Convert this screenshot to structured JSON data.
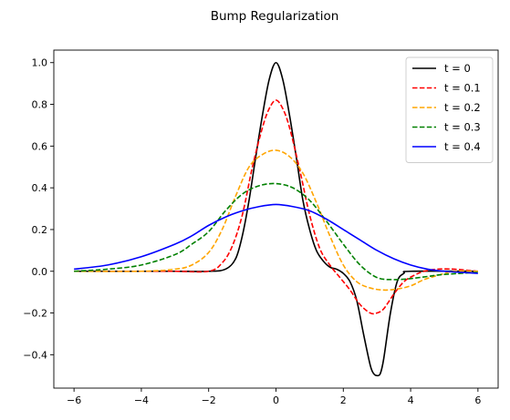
{
  "chart_data": {
    "type": "line",
    "title": "Bump Regularization",
    "xlabel": "",
    "ylabel": "",
    "xlim": [
      -6.6,
      6.6
    ],
    "ylim": [
      -0.56,
      1.06
    ],
    "xticks": [
      -6,
      -4,
      -2,
      0,
      2,
      4,
      6
    ],
    "yticks": [
      -0.4,
      -0.2,
      0.0,
      0.2,
      0.4,
      0.6,
      0.8,
      1.0
    ],
    "xtick_labels": [
      "−6",
      "−4",
      "−2",
      "0",
      "2",
      "4",
      "6"
    ],
    "ytick_labels": [
      "−0.4",
      "−0.2",
      "0.0",
      "0.2",
      "0.4",
      "0.6",
      "0.8",
      "1.0"
    ],
    "grid": false,
    "legend_position": "top-right",
    "series": [
      {
        "name": "t = 0",
        "color": "#000000",
        "dash": "solid",
        "x": [
          -6,
          -4,
          -3,
          -2,
          -1.5,
          -1.2,
          -1,
          -0.8,
          -0.6,
          -0.4,
          -0.2,
          0,
          0.2,
          0.4,
          0.6,
          0.8,
          1,
          1.2,
          1.4,
          1.6,
          1.8,
          2,
          2.2,
          2.4,
          2.6,
          2.8,
          2.9,
          3,
          3.1,
          3.2,
          3.4,
          3.6,
          3.8,
          4,
          6
        ],
        "y": [
          0,
          0,
          0,
          0,
          0.01,
          0.06,
          0.17,
          0.34,
          0.55,
          0.75,
          0.92,
          1.0,
          0.92,
          0.75,
          0.55,
          0.34,
          0.2,
          0.1,
          0.05,
          0.02,
          0.01,
          -0.01,
          -0.05,
          -0.14,
          -0.3,
          -0.45,
          -0.49,
          -0.5,
          -0.49,
          -0.42,
          -0.2,
          -0.05,
          -0.01,
          0,
          0
        ]
      },
      {
        "name": "t = 0.1",
        "color": "#ff0000",
        "dash": "dashed",
        "x": [
          -6,
          -4,
          -3,
          -2,
          -1.6,
          -1.3,
          -1.0,
          -0.7,
          -0.4,
          -0.2,
          0,
          0.2,
          0.4,
          0.7,
          1.0,
          1.3,
          1.6,
          1.9,
          2.2,
          2.5,
          2.8,
          3.0,
          3.2,
          3.5,
          3.8,
          4.1,
          4.4,
          4.8,
          5.3,
          6
        ],
        "y": [
          0,
          0,
          0,
          0.0,
          0.04,
          0.12,
          0.27,
          0.5,
          0.69,
          0.78,
          0.82,
          0.78,
          0.69,
          0.49,
          0.27,
          0.11,
          0.03,
          -0.03,
          -0.09,
          -0.16,
          -0.2,
          -0.2,
          -0.18,
          -0.11,
          -0.05,
          -0.02,
          0,
          0.01,
          0.01,
          0.0
        ]
      },
      {
        "name": "t = 0.2",
        "color": "#ffa500",
        "dash": "dashed",
        "x": [
          -6,
          -4,
          -3,
          -2.5,
          -2,
          -1.6,
          -1.2,
          -0.8,
          -0.4,
          0,
          0.4,
          0.8,
          1.2,
          1.6,
          2.0,
          2.4,
          2.8,
          3.2,
          3.6,
          4.0,
          4.4,
          4.8,
          5.3,
          6
        ],
        "y": [
          0,
          0.0,
          0.01,
          0.03,
          0.09,
          0.2,
          0.36,
          0.5,
          0.56,
          0.58,
          0.55,
          0.47,
          0.33,
          0.17,
          0.03,
          -0.05,
          -0.08,
          -0.09,
          -0.085,
          -0.07,
          -0.04,
          -0.02,
          0.0,
          0.0
        ]
      },
      {
        "name": "t = 0.3",
        "color": "#008000",
        "dash": "dashed",
        "x": [
          -6,
          -5,
          -4,
          -3,
          -2.5,
          -2,
          -1.5,
          -1.0,
          -0.5,
          0,
          0.5,
          1.0,
          1.5,
          2.0,
          2.5,
          3.0,
          3.5,
          4.0,
          4.5,
          5.0,
          6
        ],
        "y": [
          0.0,
          0.01,
          0.03,
          0.08,
          0.13,
          0.19,
          0.29,
          0.37,
          0.41,
          0.42,
          0.4,
          0.34,
          0.24,
          0.13,
          0.03,
          -0.03,
          -0.04,
          -0.035,
          -0.025,
          -0.015,
          -0.005
        ]
      },
      {
        "name": "t = 0.4",
        "color": "#0000ff",
        "dash": "solid",
        "x": [
          -6,
          -5,
          -4,
          -3,
          -2.5,
          -2,
          -1.5,
          -1.0,
          -0.5,
          0,
          0.5,
          1.0,
          1.5,
          2.0,
          2.5,
          3.0,
          3.5,
          4.0,
          4.5,
          5.0,
          5.5,
          6
        ],
        "y": [
          0.01,
          0.03,
          0.07,
          0.13,
          0.17,
          0.22,
          0.26,
          0.29,
          0.31,
          0.32,
          0.31,
          0.29,
          0.25,
          0.2,
          0.15,
          0.1,
          0.06,
          0.03,
          0.01,
          0.0,
          -0.005,
          -0.01
        ]
      }
    ]
  }
}
